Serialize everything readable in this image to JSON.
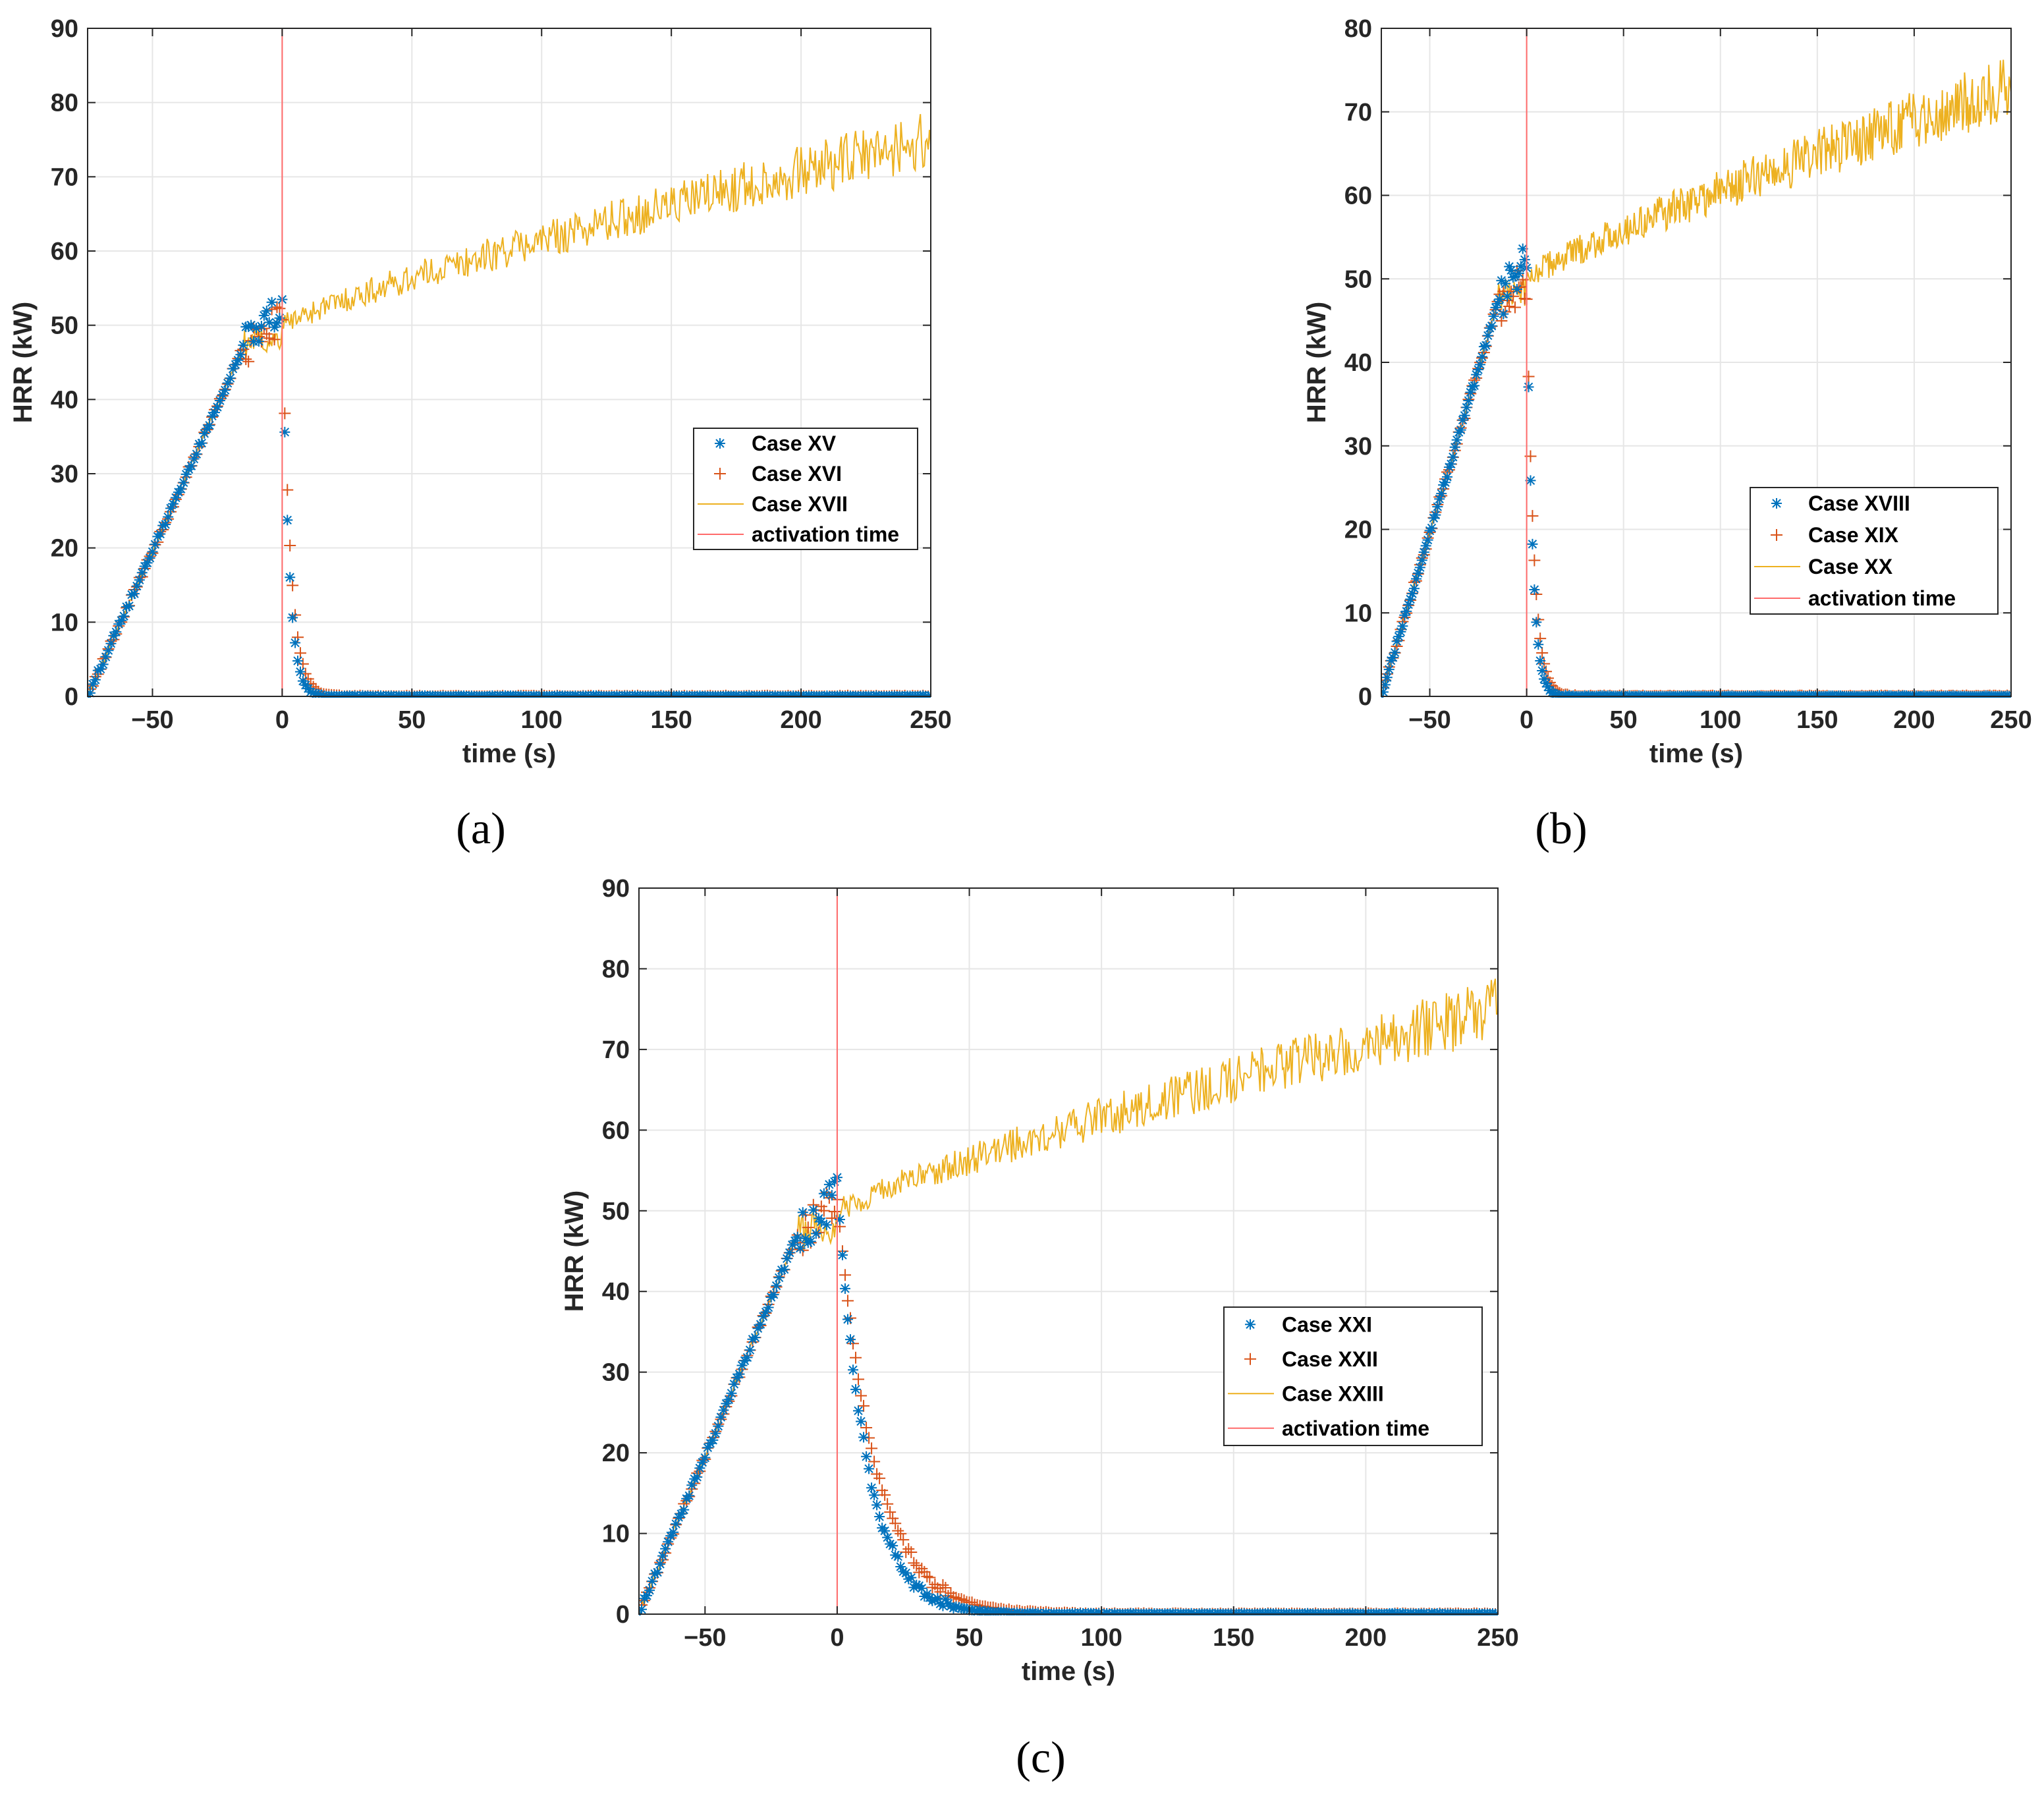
{
  "colors": {
    "series_star": "#0072BD",
    "series_plus": "#D95319",
    "series_line": "#EDB120",
    "activation": "#FF6A6A",
    "grid": "#E6E6E6",
    "axis": "#262626"
  },
  "chart_data": [
    {
      "type": "scatter",
      "panel_label": "(a)",
      "xlabel": "time (s)",
      "ylabel": "HRR (kW)",
      "xlim": [
        -75,
        250
      ],
      "ylim": [
        0,
        90
      ],
      "xticks": [
        -50,
        0,
        50,
        100,
        150,
        200,
        250
      ],
      "xtick_labels": [
        "−50",
        "0",
        "50",
        "100",
        "150",
        "200",
        "250"
      ],
      "yticks": [
        0,
        10,
        20,
        30,
        40,
        50,
        60,
        70,
        80,
        90
      ],
      "ytick_labels": [
        "0",
        "10",
        "20",
        "30",
        "40",
        "50",
        "60",
        "70",
        "80",
        "90"
      ],
      "grid": true,
      "legend_position": "center-right",
      "activation_time": 0,
      "series": [
        {
          "name": "Case XV",
          "marker": "star",
          "peak": 53,
          "after_decay": "fast",
          "decay_tau": 2.5
        },
        {
          "name": "Case XVI",
          "marker": "plus",
          "peak": 52,
          "after_decay": "fast",
          "decay_tau": 3.2
        },
        {
          "name": "Case XVII",
          "marker": "line",
          "peak": 50,
          "end_value": 75,
          "noise": 3
        },
        {
          "name": "activation time",
          "marker": "vline"
        }
      ]
    },
    {
      "type": "scatter",
      "panel_label": "(b)",
      "xlabel": "time (s)",
      "ylabel": "HRR (kW)",
      "xlim": [
        -75,
        250
      ],
      "ylim": [
        0,
        80
      ],
      "xticks": [
        -50,
        0,
        50,
        100,
        150,
        200,
        250
      ],
      "xtick_labels": [
        "−50",
        "0",
        "50",
        "100",
        "150",
        "200",
        "250"
      ],
      "yticks": [
        0,
        10,
        20,
        30,
        40,
        50,
        60,
        70,
        80
      ],
      "ytick_labels": [
        "0",
        "10",
        "20",
        "30",
        "40",
        "50",
        "60",
        "70",
        "80"
      ],
      "grid": true,
      "legend_position": "lower-right",
      "activation_time": 0,
      "series": [
        {
          "name": "Case XVIII",
          "marker": "star",
          "peak": 53,
          "after_decay": "fast",
          "decay_tau": 2.8
        },
        {
          "name": "Case XIX",
          "marker": "plus",
          "peak": 51,
          "after_decay": "fast",
          "decay_tau": 3.5
        },
        {
          "name": "Case XX",
          "marker": "line",
          "peak": 50,
          "end_value": 73,
          "noise": 3
        },
        {
          "name": "activation time",
          "marker": "vline"
        }
      ]
    },
    {
      "type": "scatter",
      "panel_label": "(c)",
      "xlabel": "time (s)",
      "ylabel": "HRR (kW)",
      "xlim": [
        -75,
        250
      ],
      "ylim": [
        0,
        90
      ],
      "xticks": [
        -50,
        0,
        50,
        100,
        150,
        200,
        250
      ],
      "xtick_labels": [
        "−50",
        "0",
        "50",
        "100",
        "150",
        "200",
        "250"
      ],
      "yticks": [
        0,
        10,
        20,
        30,
        40,
        50,
        60,
        70,
        80,
        90
      ],
      "ytick_labels": [
        "0",
        "10",
        "20",
        "30",
        "40",
        "50",
        "60",
        "70",
        "80",
        "90"
      ],
      "grid": true,
      "legend_position": "center-right",
      "activation_time": 0,
      "series": [
        {
          "name": "Case XXI",
          "marker": "star",
          "peak": 53,
          "after_decay": "slow",
          "decay_tau": 11
        },
        {
          "name": "Case XXII",
          "marker": "plus",
          "peak": 52,
          "after_decay": "slow",
          "decay_tau": 14
        },
        {
          "name": "Case XXIII",
          "marker": "line",
          "peak": 50,
          "end_value": 75,
          "noise": 3
        },
        {
          "name": "activation time",
          "marker": "vline"
        }
      ]
    }
  ]
}
